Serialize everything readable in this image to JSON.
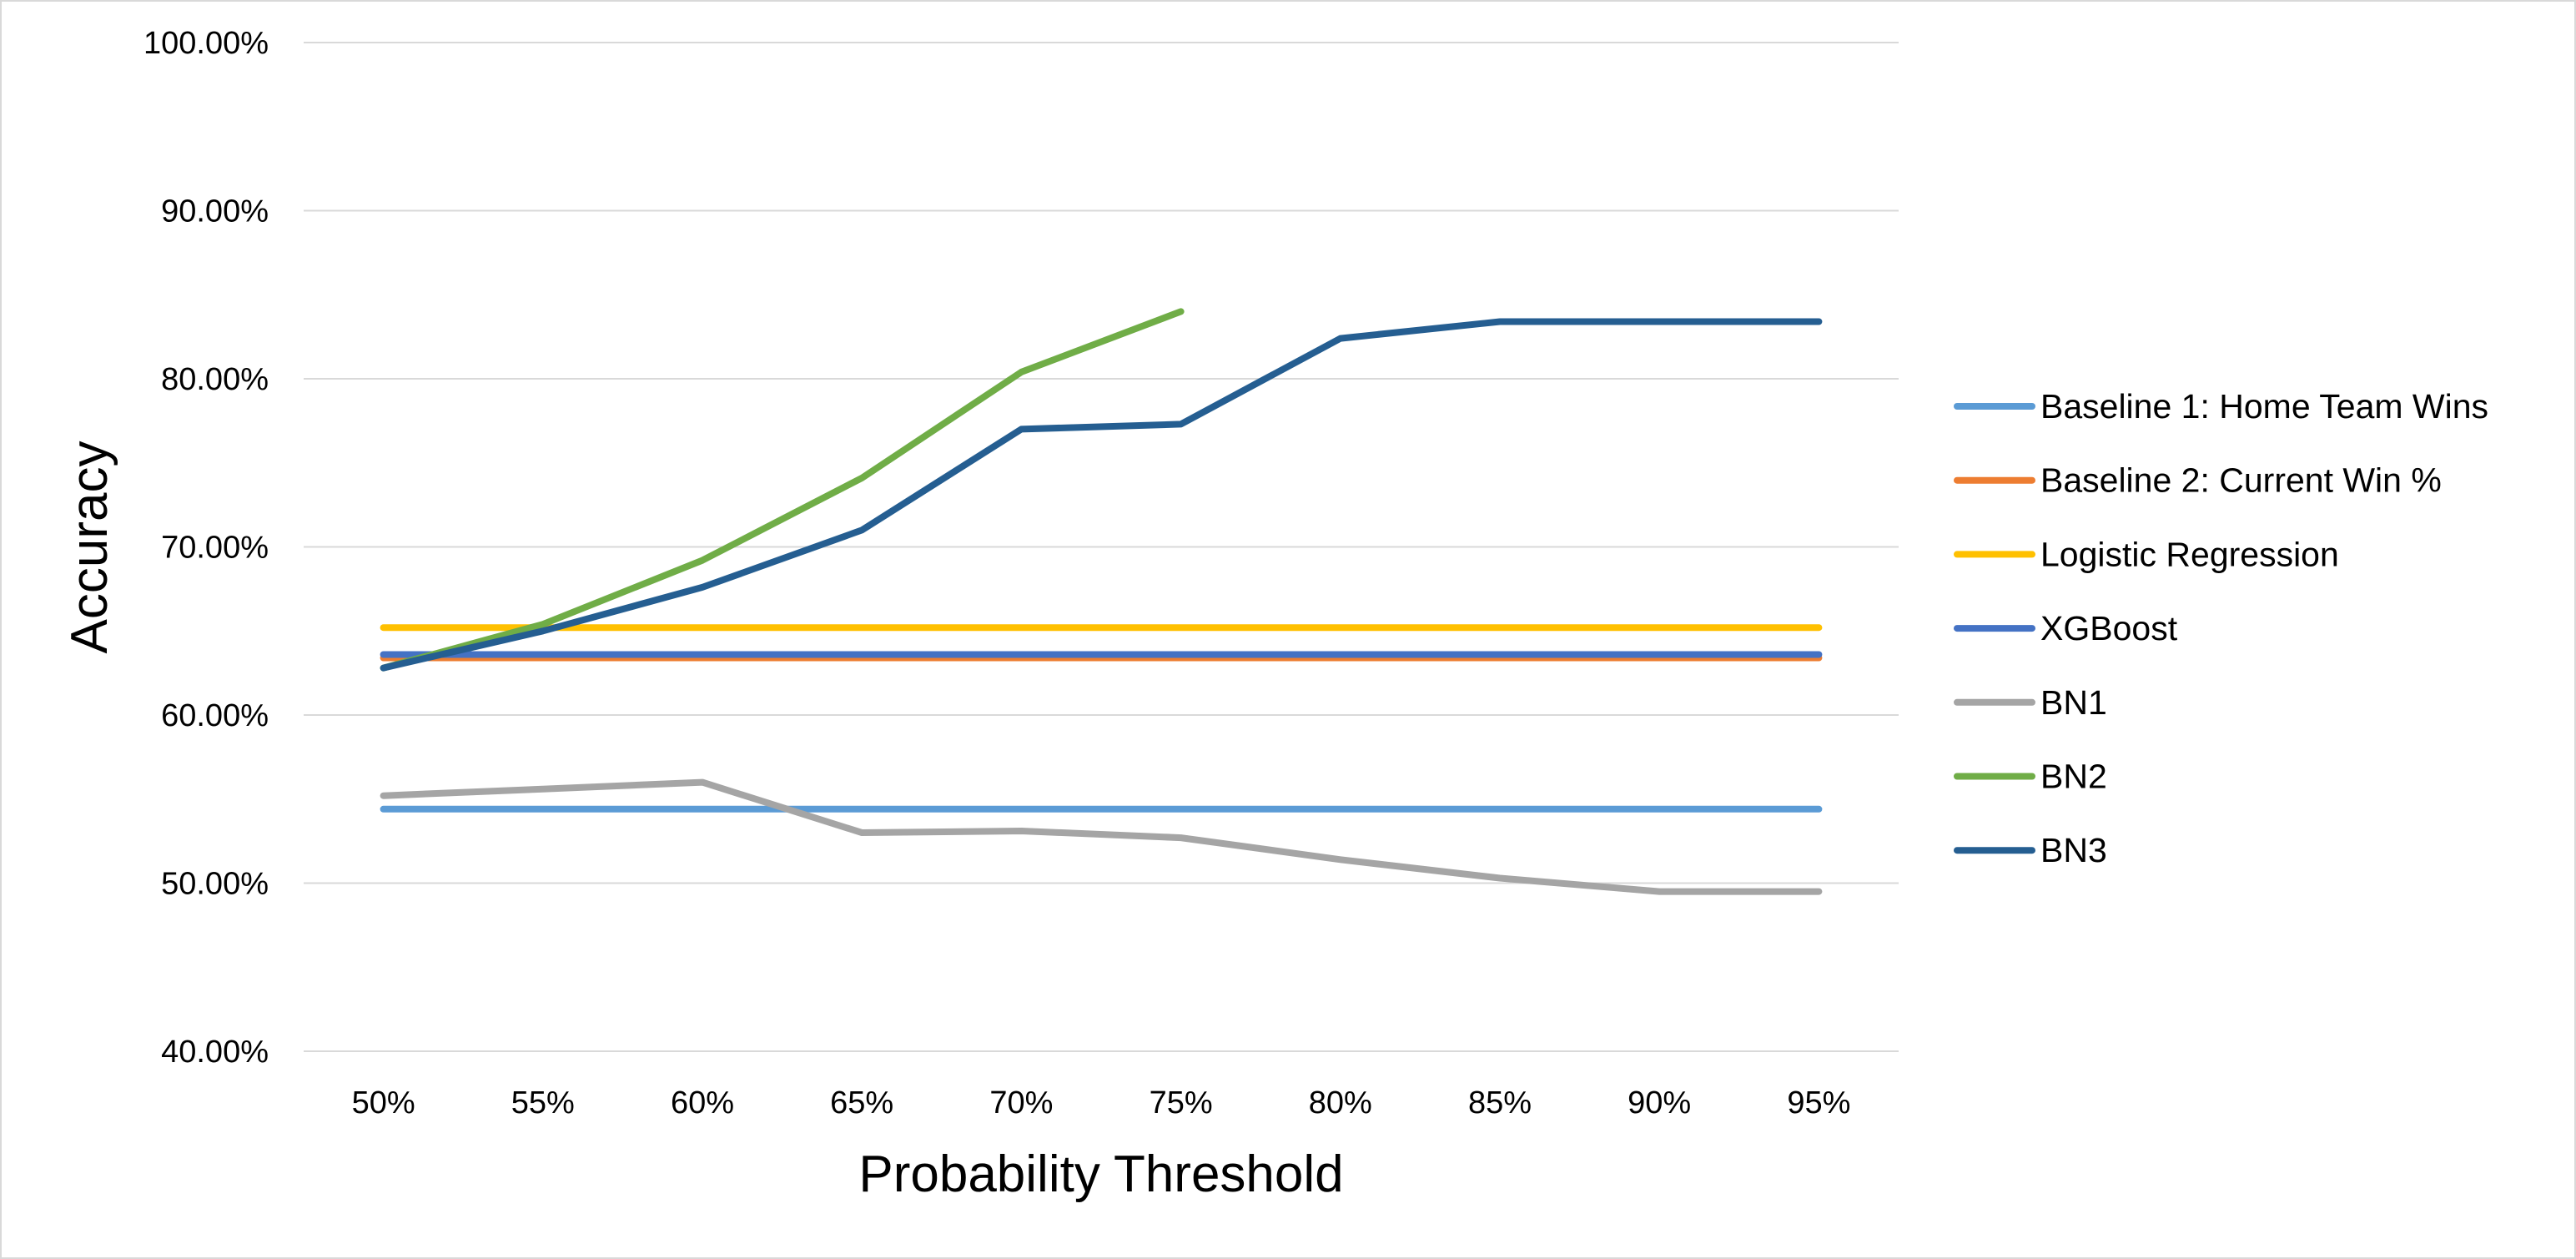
{
  "chart_data": {
    "type": "line",
    "title": "",
    "xlabel": "Probability Threshold",
    "ylabel": "Accuracy",
    "categories": [
      "50%",
      "55%",
      "60%",
      "65%",
      "70%",
      "75%",
      "80%",
      "85%",
      "90%",
      "95%"
    ],
    "y_ticks": [
      "40.00%",
      "50.00%",
      "60.00%",
      "70.00%",
      "80.00%",
      "90.00%",
      "100.00%"
    ],
    "ylim": [
      0.4,
      1.0
    ],
    "grid": "horizontal",
    "legend_position": "right",
    "series": [
      {
        "name": "Baseline 1: Home Team Wins",
        "color": "#5B9BD5",
        "values": [
          0.544,
          0.544,
          0.544,
          0.544,
          0.544,
          0.544,
          0.544,
          0.544,
          0.544,
          0.544
        ]
      },
      {
        "name": "Baseline 2: Current Win %",
        "color": "#ED7D31",
        "values": [
          0.634,
          0.634,
          0.634,
          0.634,
          0.634,
          0.634,
          0.634,
          0.634,
          0.634,
          0.634
        ]
      },
      {
        "name": "Logistic Regression",
        "color": "#FFC000",
        "values": [
          0.652,
          0.652,
          0.652,
          0.652,
          0.652,
          0.652,
          0.652,
          0.652,
          0.652,
          0.652
        ]
      },
      {
        "name": "XGBoost",
        "color": "#4472C4",
        "values": [
          0.636,
          0.636,
          0.636,
          0.636,
          0.636,
          0.636,
          0.636,
          0.636,
          0.636,
          0.636
        ]
      },
      {
        "name": "BN1",
        "color": "#A5A5A5",
        "values": [
          0.552,
          0.556,
          0.56,
          0.53,
          0.531,
          0.527,
          0.514,
          0.503,
          0.495,
          0.495
        ]
      },
      {
        "name": "BN2",
        "color": "#70AD47",
        "values": [
          0.628,
          0.654,
          0.692,
          0.741,
          0.804,
          0.84,
          null,
          null,
          null,
          null
        ]
      },
      {
        "name": "BN3",
        "color": "#255E91",
        "values": [
          0.628,
          0.65,
          0.676,
          0.71,
          0.77,
          0.773,
          0.824,
          0.834,
          0.834,
          0.834
        ]
      }
    ]
  }
}
